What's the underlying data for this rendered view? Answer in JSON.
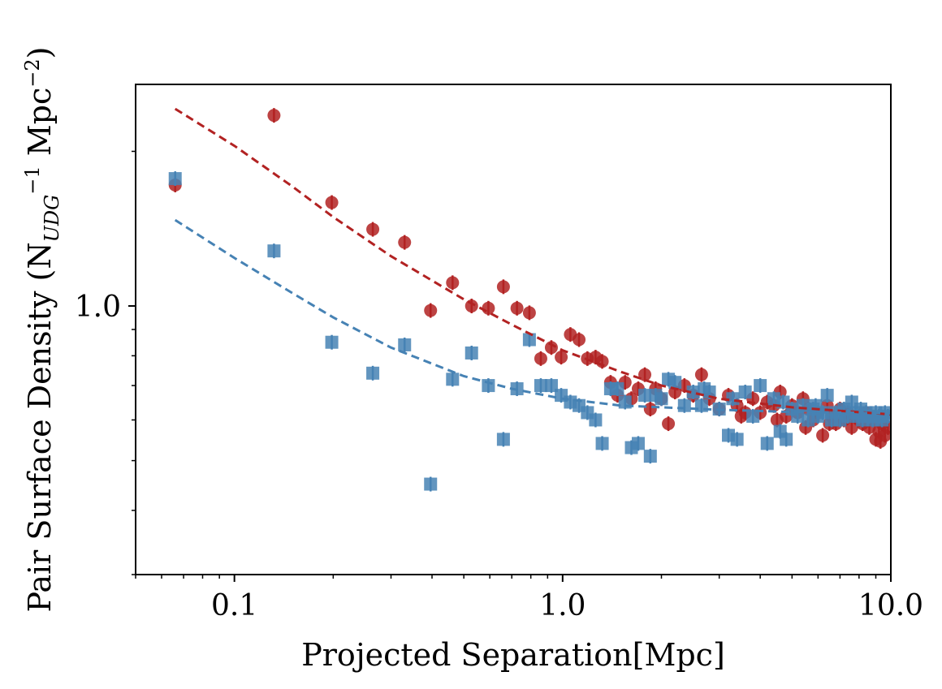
{
  "chart_data": {
    "type": "scatter",
    "xscale": "log",
    "yscale": "log",
    "xlim": [
      0.05,
      10.0
    ],
    "ylim": [
      0.3,
      2.7
    ],
    "xticks": [
      0.1,
      1.0,
      10.0
    ],
    "xtick_labels": [
      "0.1",
      "1.0",
      "10.0"
    ],
    "yticks": [
      1.0
    ],
    "ytick_labels": [
      "1.0"
    ],
    "xlabel": "Projected Separation[Mpc]",
    "ylabel_parts": {
      "prefix": "Pair Surface Density (N",
      "sub": "UDG",
      "sup1": "−1",
      "mid": " Mpc",
      "sup2": "−2",
      "suffix": ")"
    },
    "grid": false,
    "legend": "none",
    "colors": {
      "red": "#b22222",
      "blue": "#4682b4"
    },
    "series": [
      {
        "marker": "circle",
        "color": "#b22222",
        "points": [
          [
            0.066,
            1.72
          ],
          [
            0.132,
            2.35
          ],
          [
            0.198,
            1.59
          ],
          [
            0.264,
            1.41
          ],
          [
            0.33,
            1.33
          ],
          [
            0.396,
            0.98
          ],
          [
            0.462,
            1.11
          ],
          [
            0.528,
            1.0
          ],
          [
            0.594,
            0.99
          ],
          [
            0.66,
            1.09
          ],
          [
            0.726,
            0.99
          ],
          [
            0.792,
            0.97
          ],
          [
            0.858,
            0.79
          ],
          [
            0.924,
            0.83
          ],
          [
            0.99,
            0.795
          ],
          [
            1.056,
            0.88
          ],
          [
            1.122,
            0.86
          ],
          [
            1.19,
            0.79
          ],
          [
            1.26,
            0.795
          ],
          [
            1.32,
            0.78
          ],
          [
            1.4,
            0.71
          ],
          [
            1.47,
            0.67
          ],
          [
            1.55,
            0.71
          ],
          [
            1.62,
            0.66
          ],
          [
            1.7,
            0.69
          ],
          [
            1.78,
            0.735
          ],
          [
            1.85,
            0.63
          ],
          [
            1.92,
            0.69
          ],
          [
            2.0,
            0.66
          ],
          [
            2.1,
            0.59
          ],
          [
            2.2,
            0.68
          ],
          [
            2.35,
            0.7
          ],
          [
            2.5,
            0.67
          ],
          [
            2.65,
            0.735
          ],
          [
            2.8,
            0.66
          ],
          [
            3.0,
            0.63
          ],
          [
            3.2,
            0.67
          ],
          [
            3.4,
            0.64
          ],
          [
            3.6,
            0.62
          ],
          [
            3.8,
            0.66
          ],
          [
            4.0,
            0.62
          ],
          [
            4.2,
            0.65
          ],
          [
            4.4,
            0.64
          ],
          [
            4.6,
            0.68
          ],
          [
            4.8,
            0.61
          ],
          [
            5.0,
            0.64
          ],
          [
            5.2,
            0.62
          ],
          [
            5.4,
            0.66
          ],
          [
            5.6,
            0.63
          ],
          [
            5.8,
            0.6
          ],
          [
            6.0,
            0.62
          ],
          [
            6.2,
            0.56
          ],
          [
            6.4,
            0.64
          ],
          [
            6.6,
            0.61
          ],
          [
            6.8,
            0.59
          ],
          [
            7.0,
            0.63
          ],
          [
            7.2,
            0.6
          ],
          [
            7.4,
            0.62
          ],
          [
            7.6,
            0.58
          ],
          [
            7.8,
            0.61
          ],
          [
            8.0,
            0.6
          ],
          [
            8.2,
            0.59
          ],
          [
            8.4,
            0.62
          ],
          [
            8.6,
            0.58
          ],
          [
            8.8,
            0.6
          ],
          [
            9.0,
            0.55
          ],
          [
            9.2,
            0.57
          ],
          [
            9.4,
            0.59
          ],
          [
            9.6,
            0.56
          ],
          [
            9.8,
            0.58
          ],
          [
            6.5,
            0.59
          ],
          [
            5.5,
            0.58
          ],
          [
            4.5,
            0.6
          ],
          [
            3.5,
            0.61
          ],
          [
            9.3,
            0.545
          ]
        ]
      },
      {
        "marker": "square",
        "color": "#4682b4",
        "points": [
          [
            0.066,
            1.77
          ],
          [
            0.132,
            1.28
          ],
          [
            0.198,
            0.85
          ],
          [
            0.264,
            0.74
          ],
          [
            0.33,
            0.84
          ],
          [
            0.396,
            0.45
          ],
          [
            0.462,
            0.72
          ],
          [
            0.528,
            0.81
          ],
          [
            0.594,
            0.7
          ],
          [
            0.66,
            0.55
          ],
          [
            0.726,
            0.69
          ],
          [
            0.792,
            0.86
          ],
          [
            0.858,
            0.7
          ],
          [
            0.924,
            0.7
          ],
          [
            0.99,
            0.67
          ],
          [
            1.056,
            0.65
          ],
          [
            1.122,
            0.64
          ],
          [
            1.19,
            0.62
          ],
          [
            1.26,
            0.6
          ],
          [
            1.32,
            0.54
          ],
          [
            1.4,
            0.69
          ],
          [
            1.47,
            0.69
          ],
          [
            1.55,
            0.65
          ],
          [
            1.62,
            0.53
          ],
          [
            1.7,
            0.54
          ],
          [
            1.78,
            0.67
          ],
          [
            1.85,
            0.51
          ],
          [
            1.92,
            0.67
          ],
          [
            2.0,
            0.66
          ],
          [
            2.1,
            0.72
          ],
          [
            2.2,
            0.71
          ],
          [
            2.35,
            0.64
          ],
          [
            2.5,
            0.68
          ],
          [
            2.65,
            0.64
          ],
          [
            2.8,
            0.68
          ],
          [
            3.0,
            0.63
          ],
          [
            3.2,
            0.56
          ],
          [
            3.4,
            0.55
          ],
          [
            3.6,
            0.68
          ],
          [
            3.8,
            0.61
          ],
          [
            4.0,
            0.7
          ],
          [
            4.2,
            0.54
          ],
          [
            4.4,
            0.66
          ],
          [
            4.6,
            0.57
          ],
          [
            4.8,
            0.55
          ],
          [
            5.0,
            0.63
          ],
          [
            5.2,
            0.61
          ],
          [
            5.4,
            0.64
          ],
          [
            5.6,
            0.6
          ],
          [
            5.8,
            0.63
          ],
          [
            6.0,
            0.61
          ],
          [
            6.2,
            0.62
          ],
          [
            6.4,
            0.67
          ],
          [
            6.6,
            0.6
          ],
          [
            6.8,
            0.62
          ],
          [
            7.0,
            0.6
          ],
          [
            7.2,
            0.63
          ],
          [
            7.4,
            0.61
          ],
          [
            7.6,
            0.65
          ],
          [
            7.8,
            0.62
          ],
          [
            8.0,
            0.61
          ],
          [
            8.2,
            0.6
          ],
          [
            8.4,
            0.62
          ],
          [
            8.6,
            0.61
          ],
          [
            8.8,
            0.6
          ],
          [
            9.0,
            0.62
          ],
          [
            9.2,
            0.61
          ],
          [
            9.4,
            0.6
          ],
          [
            9.6,
            0.62
          ],
          [
            9.8,
            0.61
          ],
          [
            4.7,
            0.65
          ],
          [
            5.9,
            0.64
          ],
          [
            3.3,
            0.66
          ],
          [
            2.7,
            0.69
          ],
          [
            8.1,
            0.63
          ]
        ]
      }
    ],
    "fit_lines": [
      {
        "color": "#b22222",
        "style": "dashed",
        "points": [
          [
            0.066,
            2.42
          ],
          [
            0.1,
            2.05
          ],
          [
            0.15,
            1.71
          ],
          [
            0.2,
            1.49
          ],
          [
            0.3,
            1.25
          ],
          [
            0.5,
            1.03
          ],
          [
            0.7,
            0.92
          ],
          [
            1.0,
            0.82
          ],
          [
            1.5,
            0.745
          ],
          [
            2.0,
            0.7
          ],
          [
            3.0,
            0.66
          ],
          [
            5.0,
            0.635
          ],
          [
            7.0,
            0.625
          ],
          [
            10.0,
            0.615
          ]
        ]
      },
      {
        "color": "#4682b4",
        "style": "dashed",
        "points": [
          [
            0.066,
            1.47
          ],
          [
            0.1,
            1.24
          ],
          [
            0.15,
            1.06
          ],
          [
            0.2,
            0.95
          ],
          [
            0.3,
            0.83
          ],
          [
            0.5,
            0.73
          ],
          [
            0.7,
            0.69
          ],
          [
            1.0,
            0.66
          ],
          [
            1.5,
            0.64
          ],
          [
            2.0,
            0.635
          ],
          [
            3.0,
            0.628
          ],
          [
            5.0,
            0.622
          ],
          [
            10.0,
            0.618
          ]
        ]
      }
    ]
  }
}
